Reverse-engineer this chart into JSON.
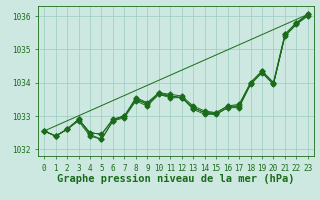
{
  "title": "Graphe pression niveau de la mer (hPa)",
  "xlim": [
    -0.5,
    23.5
  ],
  "ylim": [
    1031.8,
    1036.3
  ],
  "yticks": [
    1032,
    1033,
    1034,
    1035,
    1036
  ],
  "xticks": [
    0,
    1,
    2,
    3,
    4,
    5,
    6,
    7,
    8,
    9,
    10,
    11,
    12,
    13,
    14,
    15,
    16,
    17,
    18,
    19,
    20,
    21,
    22,
    23
  ],
  "background_color": "#cce8e0",
  "grid_color": "#99ccc0",
  "line_color": "#1a6b1a",
  "straight_line": [
    [
      0,
      1032.55
    ],
    [
      23,
      1036.05
    ]
  ],
  "series_no_marker": [
    [
      1032.55,
      1032.4,
      1032.6,
      1032.9,
      1032.5,
      1032.45,
      1032.9,
      1033.0,
      1033.5,
      1033.4,
      1033.65,
      1033.6,
      1033.55,
      1033.25,
      1033.1,
      1033.05,
      1033.25,
      1033.3,
      1033.95,
      1034.3,
      1033.95,
      1035.4,
      1035.75,
      1036.05
    ],
    [
      1032.55,
      1032.4,
      1032.6,
      1032.9,
      1032.5,
      1032.45,
      1032.9,
      1033.0,
      1033.5,
      1033.35,
      1033.65,
      1033.6,
      1033.55,
      1033.25,
      1033.1,
      1033.05,
      1033.25,
      1033.3,
      1033.95,
      1034.3,
      1033.95,
      1035.4,
      1035.75,
      1036.05
    ]
  ],
  "series_with_markers": [
    [
      1032.55,
      1032.4,
      1032.6,
      1032.9,
      1032.5,
      1032.45,
      1032.9,
      1033.0,
      1033.55,
      1033.4,
      1033.7,
      1033.65,
      1033.6,
      1033.3,
      1033.15,
      1033.1,
      1033.3,
      1033.35,
      1034.0,
      1034.35,
      1034.0,
      1035.45,
      1035.8,
      1036.05
    ],
    [
      1032.55,
      1032.4,
      1032.6,
      1032.9,
      1032.45,
      1032.3,
      1032.85,
      1033.0,
      1033.5,
      1033.35,
      1033.7,
      1033.6,
      1033.55,
      1033.25,
      1033.1,
      1033.1,
      1033.3,
      1033.3,
      1034.0,
      1034.35,
      1034.0,
      1035.45,
      1035.8,
      1036.05
    ],
    [
      1032.55,
      1032.4,
      1032.6,
      1032.85,
      1032.4,
      1032.3,
      1032.85,
      1032.95,
      1033.45,
      1033.3,
      1033.65,
      1033.55,
      1033.55,
      1033.2,
      1033.05,
      1033.05,
      1033.25,
      1033.25,
      1033.95,
      1034.3,
      1033.95,
      1035.4,
      1035.75,
      1036.0
    ]
  ],
  "font_color": "#1a6b1a",
  "tick_fontsize": 5.5,
  "title_fontsize": 7.5,
  "marker_size": 2.5,
  "linewidth": 0.7
}
